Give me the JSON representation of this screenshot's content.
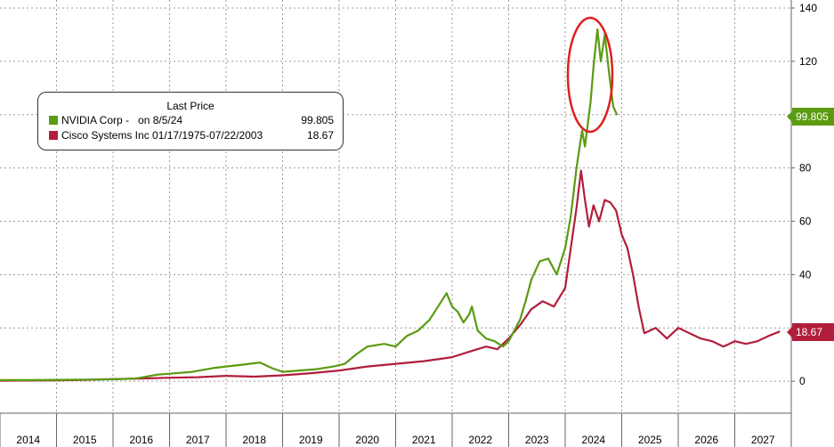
{
  "legend": {
    "title": "Last Price",
    "items": [
      {
        "label": "NVIDIA Corp -   on 8/5/24",
        "value": "99.805",
        "color": "#5b9b12"
      },
      {
        "label": "Cisco Systems Inc 01/17/1975-07/22/2003",
        "value": "18.67",
        "color": "#b11e3c"
      }
    ]
  },
  "tags": {
    "nvidia": "99.805",
    "cisco": "18.67"
  },
  "chart_data": {
    "type": "line",
    "x_tick_labels": [
      "2014",
      "2015",
      "2016",
      "2017",
      "2018",
      "2019",
      "2020",
      "2021",
      "2022",
      "2023",
      "2024",
      "2025",
      "2026",
      "2027"
    ],
    "y_ticks": [
      0,
      20,
      40,
      60,
      80,
      100,
      120,
      140
    ],
    "ylim": [
      -12,
      143
    ],
    "y_axis_position": "right",
    "grid": true,
    "annotation": "red ellipse around NVIDIA peak (2024)",
    "series": [
      {
        "name": "NVIDIA Corp",
        "color": "#5b9b12",
        "points": [
          [
            2014.0,
            0.4
          ],
          [
            2014.5,
            0.4
          ],
          [
            2015.0,
            0.5
          ],
          [
            2015.5,
            0.6
          ],
          [
            2016.0,
            0.7
          ],
          [
            2016.4,
            1.0
          ],
          [
            2016.8,
            2.5
          ],
          [
            2017.0,
            2.8
          ],
          [
            2017.4,
            3.5
          ],
          [
            2017.8,
            5.0
          ],
          [
            2018.0,
            5.5
          ],
          [
            2018.3,
            6.2
          ],
          [
            2018.6,
            7.0
          ],
          [
            2018.8,
            5.0
          ],
          [
            2019.0,
            3.5
          ],
          [
            2019.3,
            4.0
          ],
          [
            2019.6,
            4.5
          ],
          [
            2019.9,
            5.5
          ],
          [
            2020.1,
            6.5
          ],
          [
            2020.3,
            10.0
          ],
          [
            2020.5,
            13.0
          ],
          [
            2020.8,
            14.0
          ],
          [
            2021.0,
            13.0
          ],
          [
            2021.2,
            17.0
          ],
          [
            2021.4,
            19.0
          ],
          [
            2021.6,
            23.0
          ],
          [
            2021.75,
            28.0
          ],
          [
            2021.9,
            33.0
          ],
          [
            2022.0,
            28.0
          ],
          [
            2022.1,
            26.0
          ],
          [
            2022.2,
            22.0
          ],
          [
            2022.3,
            25.0
          ],
          [
            2022.35,
            28.0
          ],
          [
            2022.45,
            19.0
          ],
          [
            2022.6,
            16.0
          ],
          [
            2022.75,
            15.0
          ],
          [
            2022.9,
            13.0
          ],
          [
            2023.0,
            15.0
          ],
          [
            2023.2,
            23.0
          ],
          [
            2023.3,
            30.0
          ],
          [
            2023.4,
            38.0
          ],
          [
            2023.55,
            45.0
          ],
          [
            2023.7,
            46.0
          ],
          [
            2023.85,
            40.0
          ],
          [
            2024.0,
            50.0
          ],
          [
            2024.1,
            62.0
          ],
          [
            2024.2,
            80.0
          ],
          [
            2024.3,
            94.0
          ],
          [
            2024.35,
            88.0
          ],
          [
            2024.45,
            105.0
          ],
          [
            2024.5,
            118.0
          ],
          [
            2024.57,
            132.0
          ],
          [
            2024.63,
            120.0
          ],
          [
            2024.7,
            130.0
          ],
          [
            2024.78,
            115.0
          ],
          [
            2024.85,
            103.0
          ],
          [
            2024.92,
            99.8
          ]
        ]
      },
      {
        "name": "Cisco Systems Inc",
        "color": "#b11e3c",
        "points": [
          [
            2014.0,
            0.2
          ],
          [
            2015.0,
            0.3
          ],
          [
            2015.5,
            0.5
          ],
          [
            2016.0,
            0.8
          ],
          [
            2016.5,
            1.0
          ],
          [
            2017.0,
            1.3
          ],
          [
            2017.5,
            1.5
          ],
          [
            2018.0,
            2.0
          ],
          [
            2018.5,
            1.7
          ],
          [
            2019.0,
            2.2
          ],
          [
            2019.5,
            3.0
          ],
          [
            2020.0,
            4.0
          ],
          [
            2020.5,
            5.5
          ],
          [
            2021.0,
            6.5
          ],
          [
            2021.5,
            7.5
          ],
          [
            2022.0,
            9.0
          ],
          [
            2022.3,
            11.0
          ],
          [
            2022.6,
            13.0
          ],
          [
            2022.8,
            12.0
          ],
          [
            2023.0,
            16.0
          ],
          [
            2023.2,
            21.0
          ],
          [
            2023.4,
            27.0
          ],
          [
            2023.6,
            30.0
          ],
          [
            2023.8,
            28.0
          ],
          [
            2024.0,
            35.0
          ],
          [
            2024.1,
            50.0
          ],
          [
            2024.2,
            65.0
          ],
          [
            2024.28,
            79.0
          ],
          [
            2024.35,
            68.0
          ],
          [
            2024.42,
            58.0
          ],
          [
            2024.5,
            66.0
          ],
          [
            2024.6,
            60.0
          ],
          [
            2024.7,
            68.0
          ],
          [
            2024.8,
            67.0
          ],
          [
            2024.9,
            64.0
          ],
          [
            2025.0,
            55.0
          ],
          [
            2025.1,
            50.0
          ],
          [
            2025.2,
            40.0
          ],
          [
            2025.3,
            28.0
          ],
          [
            2025.4,
            18.0
          ],
          [
            2025.6,
            20.0
          ],
          [
            2025.8,
            16.0
          ],
          [
            2026.0,
            20.0
          ],
          [
            2026.2,
            18.0
          ],
          [
            2026.4,
            16.0
          ],
          [
            2026.6,
            15.0
          ],
          [
            2026.8,
            13.0
          ],
          [
            2027.0,
            15.0
          ],
          [
            2027.2,
            14.0
          ],
          [
            2027.4,
            15.0
          ],
          [
            2027.6,
            17.0
          ],
          [
            2027.8,
            18.67
          ]
        ]
      }
    ]
  }
}
